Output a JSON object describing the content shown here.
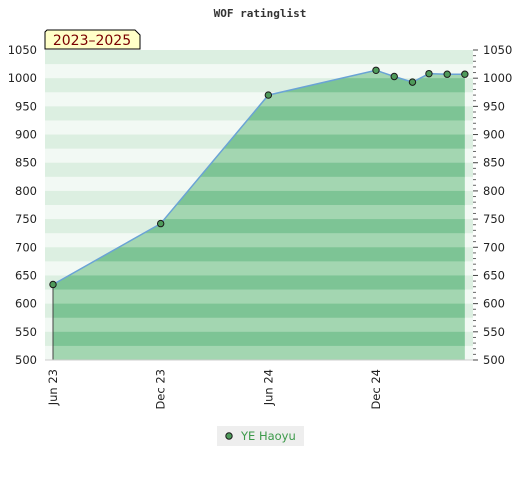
{
  "chart_data": {
    "type": "area",
    "title": "WOF ratinglist",
    "badge": "2023–2025",
    "xlabel": "",
    "ylabel": "",
    "ylim": [
      500,
      1050
    ],
    "yticks": [
      500,
      550,
      600,
      650,
      700,
      750,
      800,
      850,
      900,
      950,
      1000,
      1050
    ],
    "xticks": [
      {
        "label": "Jun 23",
        "date": "2023-06-01"
      },
      {
        "label": "Dec 23",
        "date": "2023-12-01"
      },
      {
        "label": "Jun 24",
        "date": "2024-06-01"
      },
      {
        "label": "Dec 24",
        "date": "2024-12-01"
      }
    ],
    "xrange": [
      "2023-06-01",
      "2025-04-15"
    ],
    "grid": true,
    "legend_position": "bottom-center",
    "series": [
      {
        "name": "YE Haoyu",
        "color": "#6aa3d5",
        "marker_color": "#4e9a5a",
        "points": [
          {
            "x": "2023-06-01",
            "y": 634
          },
          {
            "x": "2023-12-01",
            "y": 742
          },
          {
            "x": "2024-06-01",
            "y": 970
          },
          {
            "x": "2024-12-01",
            "y": 1014
          },
          {
            "x": "2025-01-01",
            "y": 1003
          },
          {
            "x": "2025-02-01",
            "y": 993
          },
          {
            "x": "2025-03-01",
            "y": 1008
          },
          {
            "x": "2025-04-01",
            "y": 1007
          },
          {
            "x": "2025-05-01",
            "y": 1007
          }
        ]
      }
    ]
  }
}
